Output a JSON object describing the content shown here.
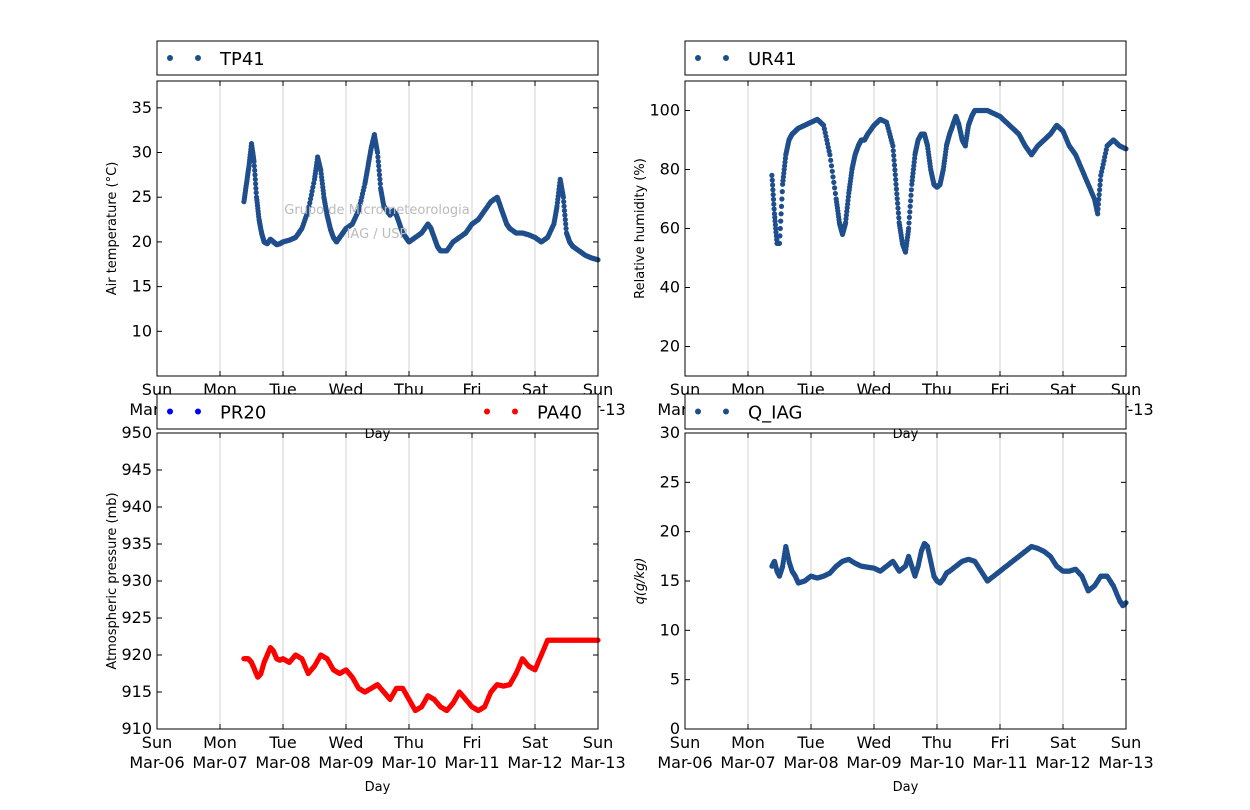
{
  "watermark": {
    "line1": "Grupo de Micrometeorologia",
    "line2": "IAG / USP"
  },
  "chart_data": [
    {
      "type": "scatter",
      "title": "",
      "xlabel": "Day",
      "ylabel": "Air temperature (°C)",
      "xlim": [
        0,
        7
      ],
      "ylim": [
        5,
        38
      ],
      "yticks": [
        10,
        15,
        20,
        25,
        30,
        35
      ],
      "xticks": [
        "Sun\nMar-06",
        "Mon\nMar-07",
        "Tue\nMar-08",
        "Wed\nMar-09",
        "Thu\nMar-10",
        "Fri\nMar-11",
        "Sat\nMar-12",
        "Sun\nMar-13"
      ],
      "grid": "vertical",
      "legend": "top",
      "series": [
        {
          "name": "TP41",
          "color": "#1f4e8c",
          "x": [
            1.38,
            1.42,
            1.46,
            1.5,
            1.54,
            1.58,
            1.62,
            1.66,
            1.7,
            1.75,
            1.8,
            1.85,
            1.9,
            1.95,
            2.0,
            2.1,
            2.2,
            2.3,
            2.4,
            2.5,
            2.55,
            2.6,
            2.65,
            2.7,
            2.75,
            2.8,
            2.85,
            2.9,
            2.95,
            3.0,
            3.1,
            3.2,
            3.3,
            3.35,
            3.4,
            3.45,
            3.5,
            3.55,
            3.6,
            3.65,
            3.7,
            3.75,
            3.8,
            3.85,
            3.9,
            3.95,
            4.0,
            4.1,
            4.2,
            4.3,
            4.35,
            4.4,
            4.45,
            4.5,
            4.6,
            4.7,
            4.8,
            4.9,
            5.0,
            5.1,
            5.2,
            5.3,
            5.4,
            5.45,
            5.5,
            5.55,
            5.6,
            5.7,
            5.8,
            5.9,
            6.0,
            6.1,
            6.2,
            6.3,
            6.35,
            6.4,
            6.45,
            6.5,
            6.55,
            6.6,
            6.7,
            6.8,
            6.9,
            7.0
          ],
          "y": [
            24.5,
            26.5,
            28.5,
            31.0,
            29.0,
            25.0,
            22.5,
            21.0,
            20.0,
            19.8,
            20.3,
            20.0,
            19.7,
            19.8,
            20.0,
            20.2,
            20.5,
            21.5,
            23.5,
            27.0,
            29.5,
            28.0,
            25.0,
            23.0,
            21.5,
            20.5,
            20.0,
            20.5,
            21.0,
            21.5,
            22.0,
            23.5,
            26.5,
            28.5,
            30.5,
            32.0,
            30.0,
            26.0,
            24.0,
            23.5,
            23.0,
            23.5,
            23.0,
            22.0,
            21.0,
            20.5,
            20.0,
            20.5,
            21.0,
            22.0,
            21.5,
            20.5,
            19.5,
            19.0,
            19.0,
            20.0,
            20.5,
            21.0,
            22.0,
            22.5,
            23.5,
            24.5,
            25.0,
            24.0,
            23.0,
            22.0,
            21.5,
            21.0,
            21.0,
            20.8,
            20.5,
            20.0,
            20.5,
            22.0,
            24.0,
            27.0,
            25.0,
            21.0,
            20.0,
            19.5,
            19.0,
            18.5,
            18.2,
            18.0
          ]
        }
      ]
    },
    {
      "type": "scatter",
      "title": "",
      "xlabel": "Day",
      "ylabel": "Relative humidity (%)",
      "xlim": [
        0,
        7
      ],
      "ylim": [
        10,
        110
      ],
      "yticks": [
        20,
        40,
        60,
        80,
        100
      ],
      "xticks": [
        "Sun\nMar-06",
        "Mon\nMar-07",
        "Tue\nMar-08",
        "Wed\nMar-09",
        "Thu\nMar-10",
        "Fri\nMar-11",
        "Sat\nMar-12",
        "Sun\nMar-13"
      ],
      "grid": "vertical",
      "legend": "top",
      "series": [
        {
          "name": "UR41",
          "color": "#1f4e8c",
          "x": [
            1.38,
            1.42,
            1.46,
            1.5,
            1.55,
            1.6,
            1.65,
            1.7,
            1.75,
            1.8,
            1.9,
            2.0,
            2.1,
            2.2,
            2.3,
            2.4,
            2.45,
            2.5,
            2.55,
            2.6,
            2.65,
            2.7,
            2.75,
            2.8,
            2.85,
            2.9,
            3.0,
            3.1,
            3.2,
            3.3,
            3.35,
            3.4,
            3.45,
            3.5,
            3.55,
            3.6,
            3.65,
            3.7,
            3.75,
            3.8,
            3.85,
            3.9,
            3.95,
            4.0,
            4.05,
            4.1,
            4.15,
            4.2,
            4.25,
            4.3,
            4.35,
            4.4,
            4.45,
            4.5,
            4.55,
            4.6,
            4.7,
            4.8,
            4.9,
            5.0,
            5.1,
            5.2,
            5.3,
            5.4,
            5.5,
            5.6,
            5.7,
            5.8,
            5.9,
            6.0,
            6.1,
            6.2,
            6.3,
            6.4,
            6.5,
            6.55,
            6.6,
            6.7,
            6.8,
            6.9,
            7.0
          ],
          "y": [
            78,
            65,
            55,
            55,
            75,
            85,
            90,
            92,
            93,
            94,
            95,
            96,
            97,
            95,
            85,
            70,
            62,
            58,
            62,
            72,
            80,
            85,
            88,
            90,
            90,
            92,
            95,
            97,
            96,
            88,
            75,
            62,
            55,
            52,
            60,
            75,
            85,
            90,
            92,
            92,
            88,
            80,
            75,
            74,
            75,
            80,
            88,
            92,
            95,
            98,
            95,
            90,
            88,
            95,
            98,
            100,
            100,
            100,
            99,
            98,
            96,
            94,
            92,
            88,
            85,
            88,
            90,
            92,
            95,
            93,
            88,
            85,
            80,
            75,
            70,
            65,
            78,
            88,
            90,
            88,
            87
          ]
        }
      ]
    },
    {
      "type": "scatter",
      "title": "",
      "xlabel": "Day",
      "ylabel": "Atmospheric pressure (mb)",
      "xlim": [
        0,
        7
      ],
      "ylim": [
        910,
        950
      ],
      "yticks": [
        910,
        915,
        920,
        925,
        930,
        935,
        940,
        945,
        950
      ],
      "xticks": [
        "Sun\nMar-06",
        "Mon\nMar-07",
        "Tue\nMar-08",
        "Wed\nMar-09",
        "Thu\nMar-10",
        "Fri\nMar-11",
        "Sat\nMar-12",
        "Sun\nMar-13"
      ],
      "grid": "vertical",
      "legend": "top",
      "series": [
        {
          "name": "PR20",
          "color": "#0000ff",
          "x": [],
          "y": []
        },
        {
          "name": "PA40",
          "color": "#ff0000",
          "x": [
            1.38,
            1.45,
            1.5,
            1.55,
            1.6,
            1.65,
            1.7,
            1.75,
            1.8,
            1.85,
            1.9,
            1.95,
            2.0,
            2.1,
            2.2,
            2.3,
            2.4,
            2.5,
            2.6,
            2.7,
            2.8,
            2.9,
            3.0,
            3.1,
            3.2,
            3.3,
            3.4,
            3.5,
            3.6,
            3.7,
            3.8,
            3.9,
            4.0,
            4.1,
            4.2,
            4.3,
            4.4,
            4.5,
            4.6,
            4.7,
            4.8,
            4.9,
            5.0,
            5.1,
            5.2,
            5.3,
            5.4,
            5.5,
            5.6,
            5.7,
            5.8,
            5.9,
            6.0,
            6.1,
            6.2,
            6.3,
            6.4,
            6.5,
            6.6,
            6.7,
            6.8,
            6.9,
            7.0
          ],
          "y": [
            919.5,
            919.5,
            919.0,
            918.0,
            917.0,
            917.5,
            919.0,
            920.0,
            921.0,
            920.5,
            919.5,
            919.3,
            919.5,
            919.0,
            920.0,
            919.5,
            917.5,
            918.5,
            920.0,
            919.5,
            918.0,
            917.5,
            918.0,
            917.0,
            915.5,
            915.0,
            915.5,
            916.0,
            915.0,
            914.0,
            915.5,
            915.5,
            914.0,
            912.5,
            913.0,
            914.5,
            914.0,
            913.0,
            912.5,
            913.5,
            915.0,
            914.0,
            913.0,
            912.5,
            913.0,
            915.0,
            916.0,
            915.8,
            916.0,
            917.5,
            919.5,
            918.5,
            918.0,
            920.0,
            922.0,
            922.0,
            922.0,
            922.0,
            922.0,
            922.0,
            922.0,
            922.0,
            922.0
          ]
        }
      ]
    },
    {
      "type": "scatter",
      "title": "",
      "xlabel": "Day",
      "ylabel": "q(g/kg)",
      "xlim": [
        0,
        7
      ],
      "ylim": [
        0,
        30
      ],
      "yticks": [
        0,
        5,
        10,
        15,
        20,
        25,
        30
      ],
      "xticks": [
        "Sun\nMar-06",
        "Mon\nMar-07",
        "Tue\nMar-08",
        "Wed\nMar-09",
        "Thu\nMar-10",
        "Fri\nMar-11",
        "Sat\nMar-12",
        "Sun\nMar-13"
      ],
      "grid": "vertical",
      "legend": "top",
      "series": [
        {
          "name": "Q_IAG",
          "color": "#1f4e8c",
          "x": [
            1.38,
            1.42,
            1.46,
            1.5,
            1.55,
            1.6,
            1.65,
            1.7,
            1.75,
            1.8,
            1.9,
            2.0,
            2.1,
            2.2,
            2.3,
            2.4,
            2.5,
            2.6,
            2.7,
            2.8,
            2.9,
            3.0,
            3.1,
            3.2,
            3.3,
            3.4,
            3.5,
            3.55,
            3.6,
            3.65,
            3.7,
            3.75,
            3.8,
            3.85,
            3.9,
            3.95,
            4.0,
            4.05,
            4.1,
            4.15,
            4.2,
            4.3,
            4.4,
            4.5,
            4.6,
            4.7,
            4.8,
            4.9,
            5.0,
            5.1,
            5.2,
            5.3,
            5.4,
            5.5,
            5.6,
            5.7,
            5.8,
            5.9,
            6.0,
            6.1,
            6.2,
            6.3,
            6.4,
            6.5,
            6.6,
            6.7,
            6.8,
            6.9,
            6.95,
            7.0
          ],
          "y": [
            16.5,
            17.0,
            16.0,
            15.5,
            16.5,
            18.5,
            17.0,
            16.0,
            15.5,
            14.8,
            15.0,
            15.5,
            15.3,
            15.5,
            15.8,
            16.5,
            17.0,
            17.2,
            16.8,
            16.5,
            16.4,
            16.3,
            16.0,
            16.5,
            17.0,
            16.0,
            16.5,
            17.5,
            16.5,
            15.5,
            16.5,
            18.0,
            18.8,
            18.5,
            17.0,
            15.5,
            15.0,
            14.8,
            15.2,
            15.8,
            16.0,
            16.5,
            17.0,
            17.2,
            17.0,
            16.0,
            15.0,
            15.5,
            16.0,
            16.5,
            17.0,
            17.5,
            18.0,
            18.5,
            18.3,
            18.0,
            17.5,
            16.5,
            16.0,
            16.0,
            16.2,
            15.5,
            14.0,
            14.5,
            15.5,
            15.5,
            14.5,
            13.0,
            12.5,
            12.8
          ]
        }
      ]
    }
  ]
}
